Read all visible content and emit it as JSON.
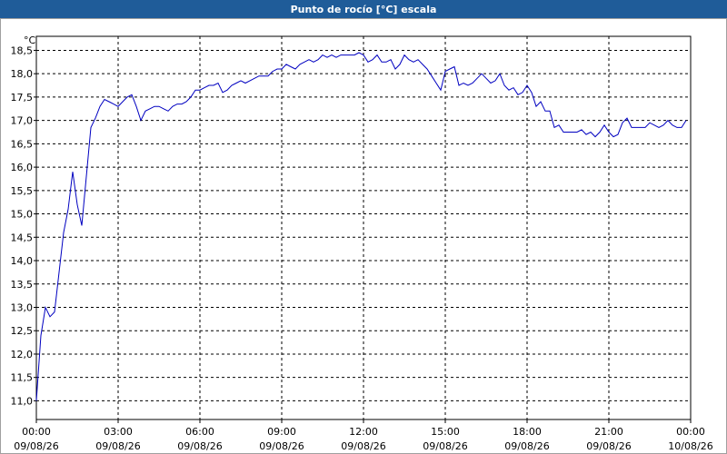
{
  "chart_data": {
    "type": "line",
    "title": "Punto de rocío [°C] escala",
    "y_unit": "°C",
    "xlim": [
      0,
      1440
    ],
    "xticks": [
      {
        "value": 0,
        "label": "00:00",
        "date": "09/08/26"
      },
      {
        "value": 180,
        "label": "03:00",
        "date": "09/08/26"
      },
      {
        "value": 360,
        "label": "06:00",
        "date": "09/08/26"
      },
      {
        "value": 540,
        "label": "09:00",
        "date": "09/08/26"
      },
      {
        "value": 720,
        "label": "12:00",
        "date": "09/08/26"
      },
      {
        "value": 900,
        "label": "15:00",
        "date": "09/08/26"
      },
      {
        "value": 1080,
        "label": "18:00",
        "date": "09/08/26"
      },
      {
        "value": 1260,
        "label": "21:00",
        "date": "09/08/26"
      },
      {
        "value": 1440,
        "label": "00:00",
        "date": "10/08/26"
      }
    ],
    "ylim": [
      10.6,
      18.8
    ],
    "yticks": [
      {
        "value": 11,
        "label": "11,0"
      },
      {
        "value": 11.5,
        "label": "11,5"
      },
      {
        "value": 12,
        "label": "12,0"
      },
      {
        "value": 12.5,
        "label": "12,5"
      },
      {
        "value": 13,
        "label": "13,0"
      },
      {
        "value": 13.5,
        "label": "13,5"
      },
      {
        "value": 14,
        "label": "14,0"
      },
      {
        "value": 14.5,
        "label": "14,5"
      },
      {
        "value": 15,
        "label": "15,0"
      },
      {
        "value": 15.5,
        "label": "15,5"
      },
      {
        "value": 16,
        "label": "16,0"
      },
      {
        "value": 16.5,
        "label": "16,5"
      },
      {
        "value": 17,
        "label": "17,0"
      },
      {
        "value": 17.5,
        "label": "17,5"
      },
      {
        "value": 18,
        "label": "18,0"
      },
      {
        "value": 18.5,
        "label": "18,5"
      }
    ],
    "grid": true,
    "x": [
      0,
      10,
      20,
      30,
      40,
      50,
      60,
      70,
      80,
      90,
      100,
      110,
      120,
      130,
      140,
      150,
      160,
      170,
      180,
      190,
      200,
      210,
      220,
      230,
      240,
      250,
      260,
      270,
      280,
      290,
      300,
      310,
      320,
      330,
      340,
      350,
      360,
      370,
      380,
      390,
      400,
      410,
      420,
      430,
      440,
      450,
      460,
      470,
      480,
      490,
      500,
      510,
      520,
      530,
      540,
      550,
      560,
      570,
      580,
      590,
      600,
      610,
      620,
      630,
      640,
      650,
      660,
      670,
      680,
      690,
      700,
      710,
      720,
      730,
      740,
      750,
      760,
      770,
      780,
      790,
      800,
      810,
      820,
      830,
      840,
      850,
      860,
      870,
      880,
      890,
      900,
      910,
      920,
      930,
      940,
      950,
      960,
      970,
      980,
      990,
      1000,
      1010,
      1020,
      1030,
      1040,
      1050,
      1060,
      1070,
      1080,
      1090,
      1100,
      1110,
      1120,
      1130,
      1140,
      1150,
      1160,
      1170,
      1180,
      1190,
      1200,
      1210,
      1220,
      1230,
      1240,
      1250,
      1260,
      1270,
      1280,
      1290,
      1300,
      1310,
      1320,
      1330,
      1340,
      1350,
      1360,
      1370,
      1380,
      1390,
      1400,
      1410,
      1420,
      1430
    ],
    "series": [
      {
        "color": "#0000c0",
        "values": [
          11.0,
          12.4,
          13.0,
          12.8,
          12.9,
          13.75,
          14.6,
          15.1,
          15.9,
          15.2,
          14.75,
          15.8,
          16.85,
          17.05,
          17.3,
          17.45,
          17.4,
          17.35,
          17.3,
          17.4,
          17.5,
          17.55,
          17.3,
          17.0,
          17.2,
          17.25,
          17.3,
          17.3,
          17.25,
          17.2,
          17.3,
          17.35,
          17.35,
          17.4,
          17.5,
          17.65,
          17.65,
          17.7,
          17.75,
          17.75,
          17.8,
          17.6,
          17.65,
          17.75,
          17.8,
          17.85,
          17.8,
          17.85,
          17.9,
          17.95,
          17.95,
          17.95,
          18.05,
          18.1,
          18.1,
          18.2,
          18.15,
          18.1,
          18.2,
          18.25,
          18.3,
          18.25,
          18.3,
          18.4,
          18.35,
          18.4,
          18.35,
          18.4,
          18.4,
          18.4,
          18.4,
          18.45,
          18.4,
          18.25,
          18.3,
          18.4,
          18.25,
          18.25,
          18.3,
          18.1,
          18.2,
          18.4,
          18.3,
          18.25,
          18.3,
          18.2,
          18.1,
          17.95,
          17.8,
          17.65,
          18.05,
          18.1,
          18.15,
          17.75,
          17.8,
          17.75,
          17.8,
          17.9,
          18.0,
          17.9,
          17.8,
          17.85,
          18.0,
          17.75,
          17.65,
          17.7,
          17.55,
          17.6,
          17.75,
          17.6,
          17.3,
          17.4,
          17.2,
          17.2,
          16.85,
          16.9,
          16.75,
          16.75,
          16.75,
          16.75,
          16.8,
          16.7,
          16.75,
          16.65,
          16.75,
          16.9,
          16.75,
          16.65,
          16.7,
          16.95,
          17.05,
          16.85,
          16.85,
          16.85,
          16.85,
          16.95,
          16.9,
          16.85,
          16.9,
          17.0,
          16.9,
          16.85,
          16.85,
          17.0
        ]
      }
    ]
  }
}
